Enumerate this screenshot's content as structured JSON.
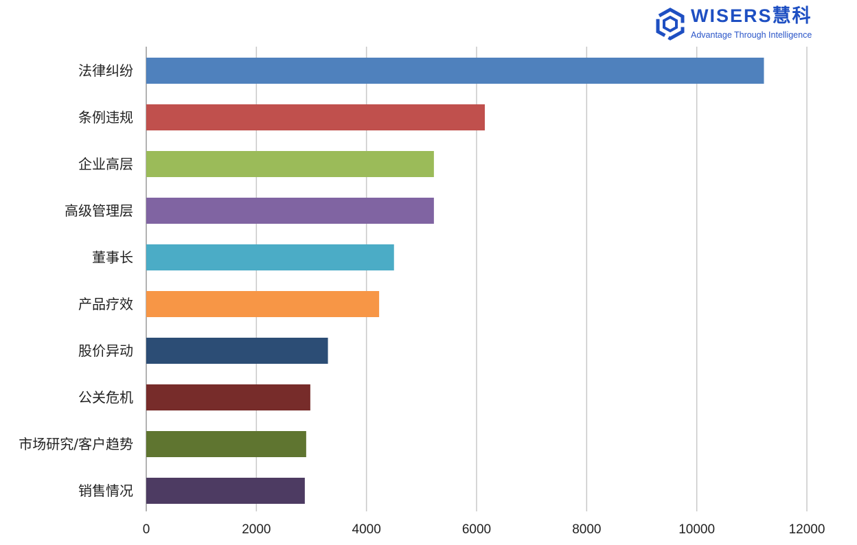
{
  "logo": {
    "name": "WISERS慧科",
    "tagline": "Advantage Through Intelligence",
    "color": "#1e4fc2"
  },
  "chart_data": {
    "type": "bar",
    "orientation": "horizontal",
    "title": "",
    "xlabel": "",
    "ylabel": "",
    "xlim": [
      0,
      12000
    ],
    "xticks": [
      0,
      2000,
      4000,
      6000,
      8000,
      10000,
      12000
    ],
    "grid": true,
    "categories": [
      "法律纠纷",
      "条例违规",
      "企业高层",
      "高级管理层",
      "董事长",
      "产品疗效",
      "股价异动",
      "公关危机",
      "市场研究/客户趋势",
      "销售情况"
    ],
    "values": [
      11220,
      6150,
      5225,
      5225,
      4500,
      4230,
      3300,
      2980,
      2905,
      2880
    ],
    "colors": [
      "#4f81bd",
      "#c0504d",
      "#9bbb59",
      "#8064a2",
      "#4bacc6",
      "#f79646",
      "#2c4d75",
      "#772c2a",
      "#5f7530",
      "#4d3b62"
    ]
  }
}
